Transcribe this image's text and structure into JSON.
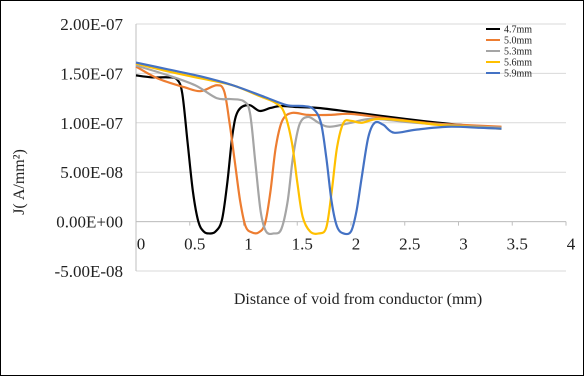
{
  "chart_data": {
    "type": "line",
    "title": "",
    "xlabel": "Distance of void from conductor (mm)",
    "ylabel": "J( A/mm²)",
    "xlim": [
      0,
      4
    ],
    "ylim": [
      -5e-08,
      2e-07
    ],
    "x_ticks": [
      "0",
      "0.5",
      "1",
      "1.5",
      "2",
      "2.5",
      "3",
      "3.5",
      "4"
    ],
    "y_ticks": [
      "2.00E-07",
      "1.50E-07",
      "1.00E-07",
      "5.00E-08",
      "0.00E+00",
      "-5.00E-08"
    ],
    "grid": "horizontal",
    "legend_position": "top-right",
    "series": [
      {
        "name": "4.7mm",
        "color": "#000000",
        "points": [
          [
            0,
            1.48e-07
          ],
          [
            0.15,
            1.46e-07
          ],
          [
            0.3,
            1.46e-07
          ],
          [
            0.38,
            1.44e-07
          ],
          [
            0.43,
            1.3e-07
          ],
          [
            0.48,
            8e-08
          ],
          [
            0.53,
            3e-08
          ],
          [
            0.58,
            0.0
          ],
          [
            0.63,
            -1e-08
          ],
          [
            0.68,
            -1.2e-08
          ],
          [
            0.74,
            -1e-08
          ],
          [
            0.8,
            2e-09
          ],
          [
            0.85,
            4e-08
          ],
          [
            0.9,
            9e-08
          ],
          [
            0.95,
            1.12e-07
          ],
          [
            1.05,
            1.18e-07
          ],
          [
            1.15,
            1.12e-07
          ],
          [
            1.25,
            1.15e-07
          ],
          [
            1.35,
            1.17e-07
          ],
          [
            1.5,
            1.16e-07
          ],
          [
            1.7,
            1.15e-07
          ],
          [
            2.0,
            1.11e-07
          ],
          [
            2.5,
            1.04e-07
          ],
          [
            3.0,
            9.8e-08
          ],
          [
            3.4,
            9.5e-08
          ]
        ]
      },
      {
        "name": "5.0mm",
        "color": "#ED7D31",
        "points": [
          [
            0,
            1.57e-07
          ],
          [
            0.2,
            1.45e-07
          ],
          [
            0.45,
            1.36e-07
          ],
          [
            0.6,
            1.32e-07
          ],
          [
            0.75,
            1.38e-07
          ],
          [
            0.82,
            1.32e-07
          ],
          [
            0.87,
            1e-07
          ],
          [
            0.92,
            6e-08
          ],
          [
            0.97,
            2e-08
          ],
          [
            1.02,
            -5e-09
          ],
          [
            1.08,
            -1.1e-08
          ],
          [
            1.14,
            -1.1e-08
          ],
          [
            1.2,
            -2e-09
          ],
          [
            1.25,
            3e-08
          ],
          [
            1.3,
            7.5e-08
          ],
          [
            1.36,
            1.02e-07
          ],
          [
            1.45,
            1.1e-07
          ],
          [
            1.6,
            1.08e-07
          ],
          [
            1.8,
            1.08e-07
          ],
          [
            2.0,
            1.09e-07
          ],
          [
            2.3,
            1.05e-07
          ],
          [
            2.7,
            1e-07
          ],
          [
            3.0,
            9.8e-08
          ],
          [
            3.4,
            9.6e-08
          ]
        ]
      },
      {
        "name": "5.3mm",
        "color": "#A5A5A5",
        "points": [
          [
            0,
            1.58e-07
          ],
          [
            0.3,
            1.48e-07
          ],
          [
            0.55,
            1.38e-07
          ],
          [
            0.75,
            1.25e-07
          ],
          [
            0.88,
            1.24e-07
          ],
          [
            1.0,
            1.22e-07
          ],
          [
            1.06,
            1.1e-07
          ],
          [
            1.11,
            6e-08
          ],
          [
            1.16,
            1e-08
          ],
          [
            1.21,
            -1e-08
          ],
          [
            1.28,
            -1.2e-08
          ],
          [
            1.35,
            -8e-09
          ],
          [
            1.41,
            2e-08
          ],
          [
            1.46,
            6.5e-08
          ],
          [
            1.52,
            9.8e-08
          ],
          [
            1.6,
            1.06e-07
          ],
          [
            1.7,
            1e-07
          ],
          [
            1.8,
            9.6e-08
          ],
          [
            2.0,
            1e-07
          ],
          [
            2.2,
            1.04e-07
          ],
          [
            2.6,
            1e-07
          ],
          [
            3.0,
            9.7e-08
          ],
          [
            3.4,
            9.5e-08
          ]
        ]
      },
      {
        "name": "5.6mm",
        "color": "#FFC000",
        "points": [
          [
            0,
            1.6e-07
          ],
          [
            0.3,
            1.52e-07
          ],
          [
            0.6,
            1.45e-07
          ],
          [
            0.9,
            1.38e-07
          ],
          [
            1.15,
            1.27e-07
          ],
          [
            1.3,
            1.2e-07
          ],
          [
            1.38,
            1.1e-07
          ],
          [
            1.45,
            8e-08
          ],
          [
            1.5,
            4e-08
          ],
          [
            1.55,
            5e-09
          ],
          [
            1.62,
            -1e-08
          ],
          [
            1.7,
            -1.2e-08
          ],
          [
            1.77,
            -6e-09
          ],
          [
            1.82,
            3e-08
          ],
          [
            1.87,
            7.5e-08
          ],
          [
            1.93,
            1e-07
          ],
          [
            2.0,
            1.02e-07
          ],
          [
            2.1,
            1e-07
          ],
          [
            2.25,
            1.04e-07
          ],
          [
            2.5,
            1.02e-07
          ],
          [
            2.8,
            9.8e-08
          ],
          [
            3.1,
            9.6e-08
          ],
          [
            3.4,
            9.4e-08
          ]
        ]
      },
      {
        "name": "5.9mm",
        "color": "#4472C4",
        "points": [
          [
            0,
            1.61e-07
          ],
          [
            0.3,
            1.54e-07
          ],
          [
            0.6,
            1.47e-07
          ],
          [
            0.9,
            1.38e-07
          ],
          [
            1.2,
            1.26e-07
          ],
          [
            1.4,
            1.18e-07
          ],
          [
            1.55,
            1.17e-07
          ],
          [
            1.65,
            1.14e-07
          ],
          [
            1.72,
            1e-07
          ],
          [
            1.77,
            6.5e-08
          ],
          [
            1.82,
            2e-08
          ],
          [
            1.87,
            -5e-09
          ],
          [
            1.93,
            -1.2e-08
          ],
          [
            2.0,
            -1e-08
          ],
          [
            2.05,
            1e-08
          ],
          [
            2.1,
            4.5e-08
          ],
          [
            2.16,
            8.5e-08
          ],
          [
            2.22,
            1e-07
          ],
          [
            2.3,
            9.8e-08
          ],
          [
            2.4,
            9e-08
          ],
          [
            2.6,
            9.3e-08
          ],
          [
            2.9,
            9.6e-08
          ],
          [
            3.2,
            9.5e-08
          ],
          [
            3.4,
            9.4e-08
          ]
        ]
      }
    ]
  }
}
